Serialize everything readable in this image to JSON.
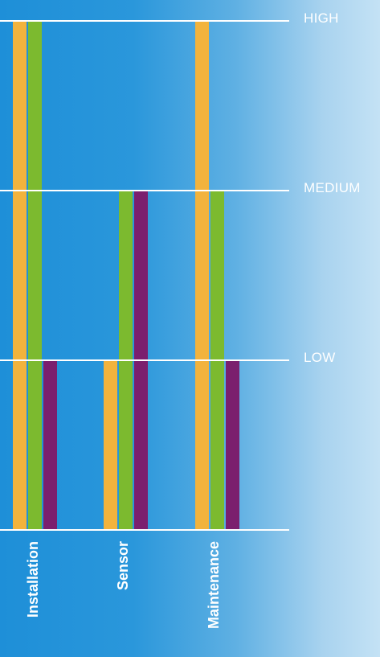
{
  "chart_data": {
    "type": "bar",
    "categories": [
      "Installation",
      "Sensor",
      "Maintenance"
    ],
    "levels": [
      "LOW",
      "MEDIUM",
      "HIGH"
    ],
    "ylim": [
      0,
      3
    ],
    "grid": true,
    "series": [
      {
        "values": [
          3,
          1,
          3
        ],
        "color": "#f2b33d"
      },
      {
        "values": [
          3,
          2,
          2
        ],
        "color": "#7cba2f"
      },
      {
        "values": [
          1,
          2,
          1
        ],
        "color": "#7b1f6e"
      }
    ]
  }
}
